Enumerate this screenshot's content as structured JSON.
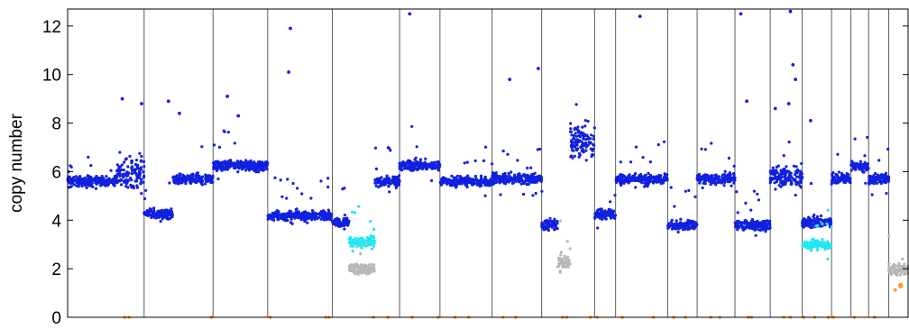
{
  "chart_data": {
    "type": "scatter",
    "title": "",
    "xlabel": "",
    "ylabel": "copy number",
    "ylim": [
      0,
      12.7
    ],
    "xlim": [
      0,
      100
    ],
    "yticks": [
      0,
      2,
      4,
      6,
      8,
      10,
      12
    ],
    "grid": false,
    "legend": "none",
    "colors": {
      "main": "#1020e0",
      "low": "#20e8f0",
      "two": "#b8b8b8",
      "one": "#ff9a30",
      "separator": "#000000"
    },
    "segment_boundaries": [
      9.1,
      17.3,
      23.8,
      31.5,
      39.5,
      44.3,
      50.5,
      56.4,
      62.7,
      65.2,
      71.4,
      74.9,
      79.4,
      83.6,
      87.4,
      90.9,
      93.2,
      95.3,
      97.7
    ],
    "segments": [
      {
        "x": [
          0,
          5.8
        ],
        "cn": 5.6,
        "color": "main"
      },
      {
        "x": [
          5.8,
          9.1
        ],
        "cn": 5.9,
        "color": "main",
        "spread": 1.2
      },
      {
        "x": [
          9.1,
          12.5
        ],
        "cn": 4.25,
        "color": "main"
      },
      {
        "x": [
          12.5,
          17.3
        ],
        "cn": 5.7,
        "color": "main"
      },
      {
        "x": [
          17.3,
          23.8
        ],
        "cn": 6.25,
        "color": "main"
      },
      {
        "x": [
          23.8,
          31.5
        ],
        "cn": 4.2,
        "color": "main"
      },
      {
        "x": [
          31.5,
          33.5
        ],
        "cn": 3.9,
        "color": "main"
      },
      {
        "x": [
          33.5,
          36.5
        ],
        "cn": 3.1,
        "color": "low"
      },
      {
        "x": [
          33.5,
          36.5
        ],
        "cn": 2.0,
        "color": "two"
      },
      {
        "x": [
          36.5,
          39.5
        ],
        "cn": 5.6,
        "color": "main"
      },
      {
        "x": [
          39.5,
          44.3
        ],
        "cn": 6.25,
        "color": "main"
      },
      {
        "x": [
          44.3,
          50.5
        ],
        "cn": 5.6,
        "color": "main"
      },
      {
        "x": [
          50.5,
          56.4
        ],
        "cn": 5.7,
        "color": "main"
      },
      {
        "x": [
          56.4,
          58.3
        ],
        "cn": 3.8,
        "color": "main"
      },
      {
        "x": [
          58.3,
          59.8
        ],
        "cn": 2.3,
        "color": "two"
      },
      {
        "x": [
          59.8,
          62.7
        ],
        "cn": 7.2,
        "color": "main",
        "spread": 1.3
      },
      {
        "x": [
          62.7,
          65.2
        ],
        "cn": 4.25,
        "color": "main"
      },
      {
        "x": [
          65.2,
          71.4
        ],
        "cn": 5.7,
        "color": "main"
      },
      {
        "x": [
          71.4,
          74.9
        ],
        "cn": 3.8,
        "color": "main"
      },
      {
        "x": [
          74.9,
          79.4
        ],
        "cn": 5.7,
        "color": "main"
      },
      {
        "x": [
          79.4,
          83.6
        ],
        "cn": 3.8,
        "color": "main"
      },
      {
        "x": [
          83.6,
          87.4
        ],
        "cn": 5.8,
        "color": "main",
        "spread": 0.8
      },
      {
        "x": [
          87.4,
          90.9
        ],
        "cn": 3.9,
        "color": "main"
      },
      {
        "x": [
          87.4,
          90.9
        ],
        "cn": 3.0,
        "color": "low"
      },
      {
        "x": [
          90.9,
          93.2
        ],
        "cn": 5.7,
        "color": "main"
      },
      {
        "x": [
          93.2,
          95.3
        ],
        "cn": 6.2,
        "color": "main"
      },
      {
        "x": [
          95.3,
          97.7
        ],
        "cn": 5.7,
        "color": "main"
      },
      {
        "x": [
          97.7,
          100
        ],
        "cn": 1.95,
        "color": "two"
      },
      {
        "x": [
          98.2,
          99.4
        ],
        "cn": 1.3,
        "color": "one",
        "sparse": true
      }
    ],
    "outliers": [
      {
        "x": 19.0,
        "cn": 9.1
      },
      {
        "x": 20.3,
        "cn": 8.3
      },
      {
        "x": 12.0,
        "cn": 8.9
      },
      {
        "x": 26.5,
        "cn": 11.9
      },
      {
        "x": 26.3,
        "cn": 10.1
      },
      {
        "x": 40.7,
        "cn": 12.5
      },
      {
        "x": 52.6,
        "cn": 9.8
      },
      {
        "x": 56.0,
        "cn": 10.25
      },
      {
        "x": 68.1,
        "cn": 12.4
      },
      {
        "x": 80.1,
        "cn": 12.5
      },
      {
        "x": 80.8,
        "cn": 8.9
      },
      {
        "x": 86.0,
        "cn": 12.6
      },
      {
        "x": 86.3,
        "cn": 10.4
      },
      {
        "x": 86.6,
        "cn": 9.8
      },
      {
        "x": 85.8,
        "cn": 8.8
      },
      {
        "x": 88.4,
        "cn": 8.1
      },
      {
        "x": 84.2,
        "cn": 8.6
      },
      {
        "x": 13.3,
        "cn": 8.4
      },
      {
        "x": 6.5,
        "cn": 9.0
      },
      {
        "x": 8.8,
        "cn": 8.8
      }
    ],
    "zero_marks": [
      6.8,
      7.3,
      17.1,
      24.1,
      30.7,
      31.1,
      36.4,
      38.1,
      41.0,
      44.1,
      46.1,
      47.7,
      51.8,
      53.3,
      58.9,
      59.4,
      62.2,
      63.0,
      66.0,
      69.7,
      72.1,
      73.5,
      76.5,
      77.6,
      81.0,
      81.4,
      85.2,
      86.0,
      87.6,
      88.9,
      90.5,
      91.1,
      93.6,
      96.0
    ]
  }
}
